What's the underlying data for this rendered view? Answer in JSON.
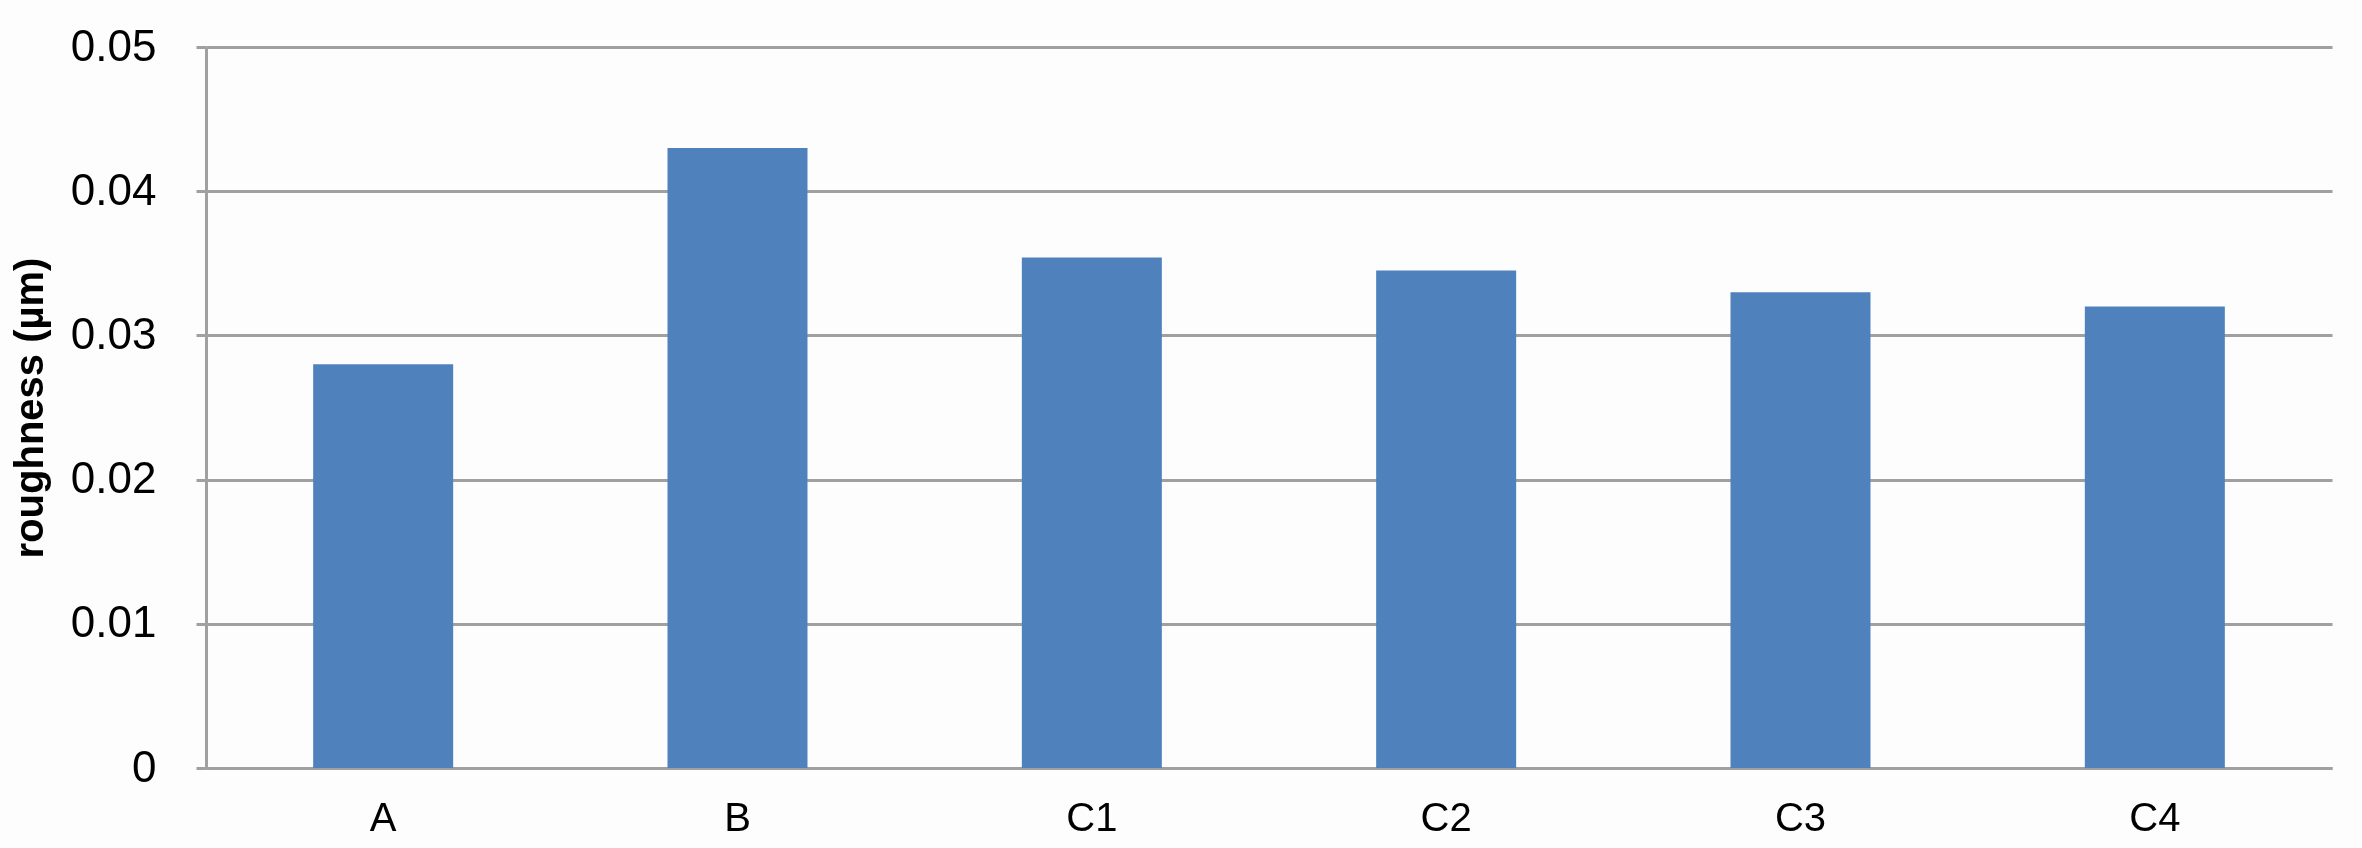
{
  "chart_data": {
    "type": "bar",
    "ylabel": "roughness (µm)",
    "categories": [
      "A",
      "B",
      "C1",
      "C2",
      "C3",
      "C4"
    ],
    "series": [
      {
        "color": "#4f81bd",
        "values": [
          0.028,
          0.043,
          0.0354,
          0.0345,
          0.033,
          0.032
        ]
      }
    ],
    "ylim": [
      0,
      0.05
    ],
    "yticks": [
      0,
      0.01,
      0.02,
      0.03,
      0.04,
      0.05
    ],
    "grid": "y"
  }
}
